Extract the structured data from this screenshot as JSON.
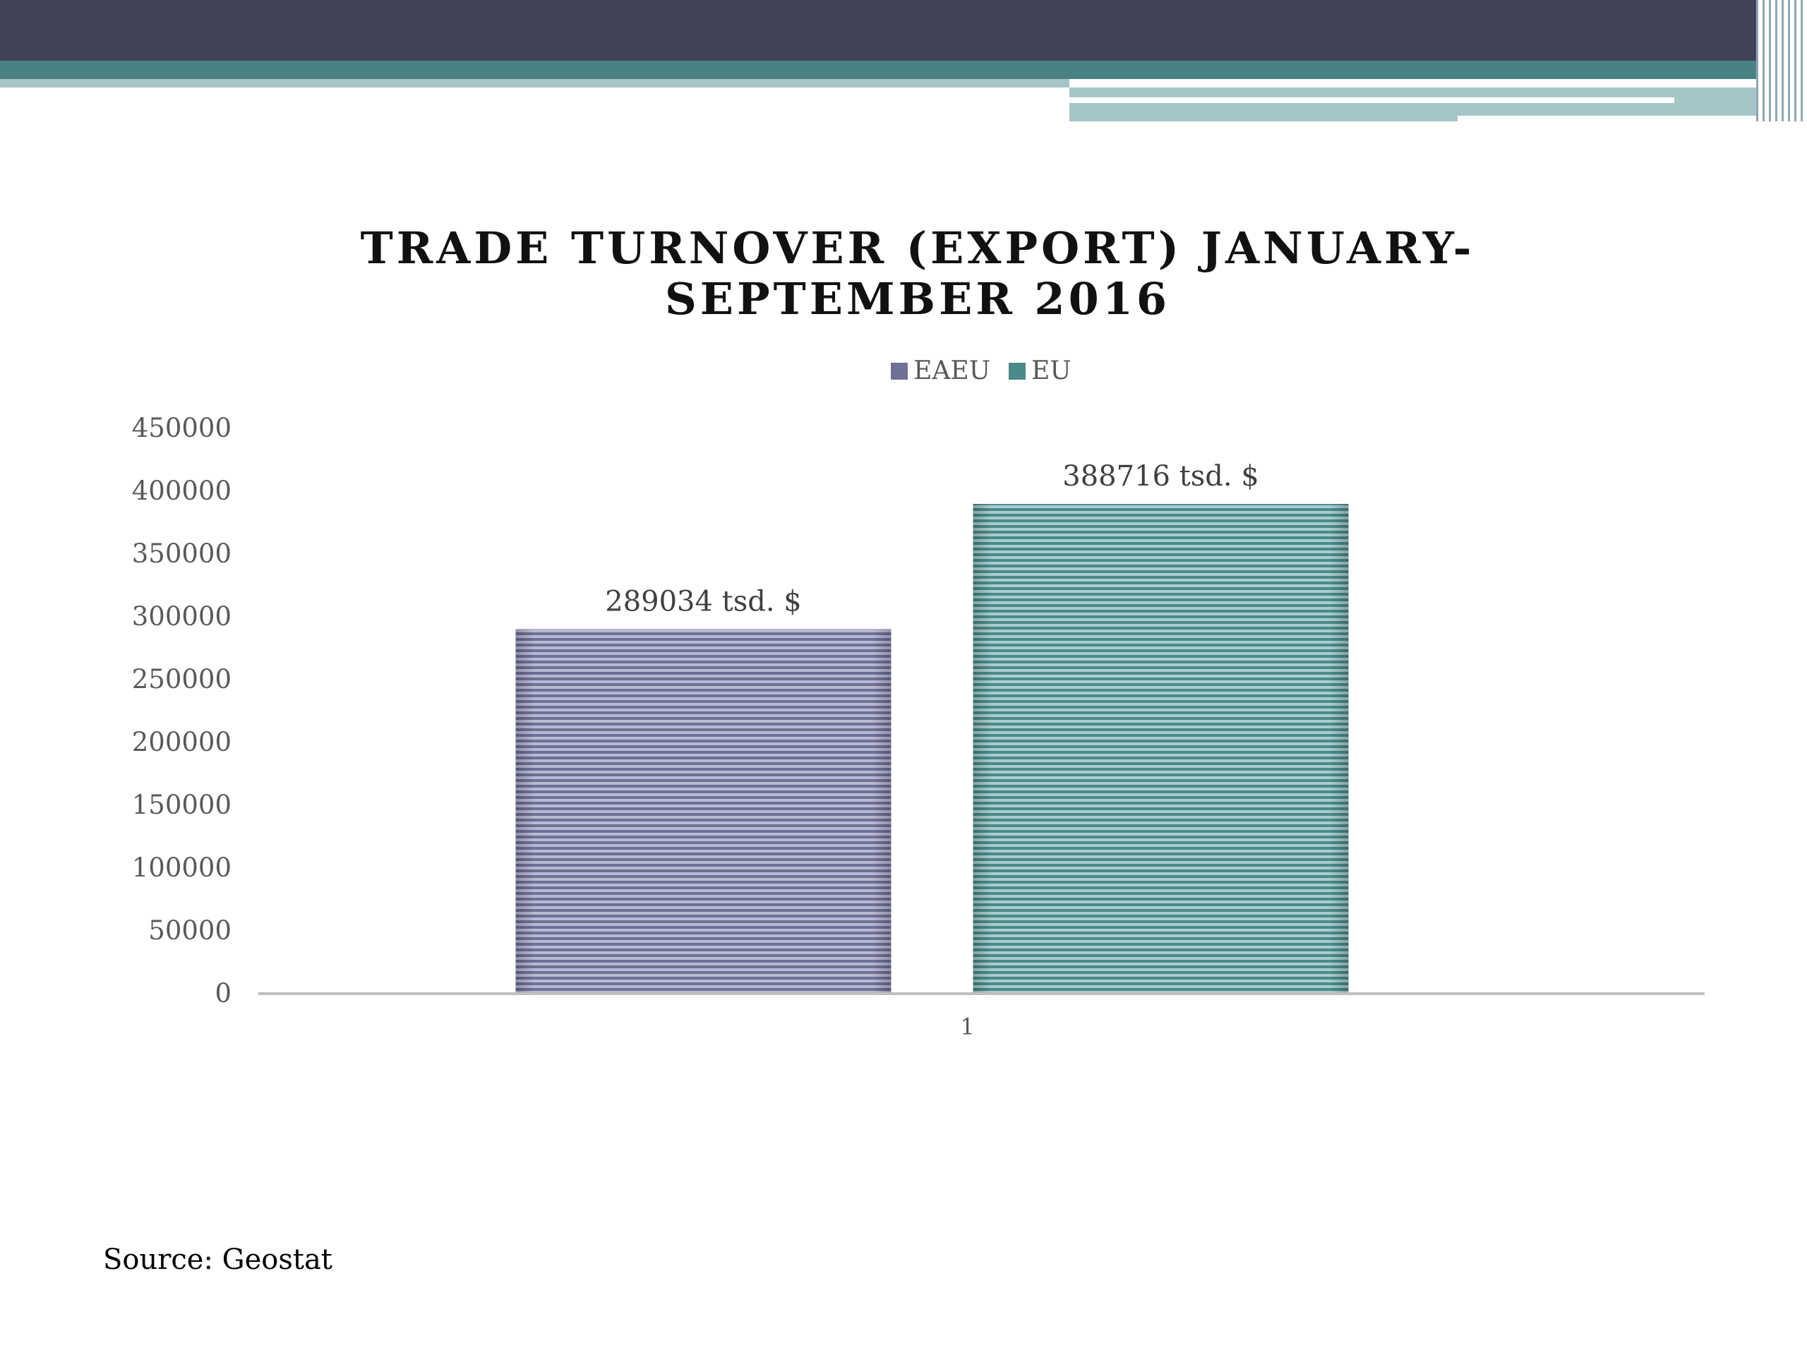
{
  "theme": {
    "header_dark": "#414458",
    "header_teal": "#4a8183",
    "header_light": "#a6c5c6",
    "axis_line": "#bfbfbf",
    "tick_text": "#595959",
    "eaeu_color": "#6e7097",
    "eu_color": "#4a8a8a"
  },
  "chart_data": {
    "type": "bar",
    "title_lines": [
      "TRADE TURNOVER (EXPORT) JANUARY-",
      "SEPTEMBER 2016"
    ],
    "categories": [
      "1"
    ],
    "series": [
      {
        "name": "EAEU",
        "values": [
          289034
        ],
        "data_label": "289034 tsd. $"
      },
      {
        "name": "EU",
        "values": [
          388716
        ],
        "data_label": "388716 tsd. $"
      }
    ],
    "ylim": [
      0,
      450000
    ],
    "yticks": [
      "0",
      "50000",
      "100000",
      "150000",
      "200000",
      "250000",
      "300000",
      "350000",
      "400000",
      "450000"
    ],
    "grid": false,
    "legend_position": "top"
  },
  "source": "Source: Geostat"
}
